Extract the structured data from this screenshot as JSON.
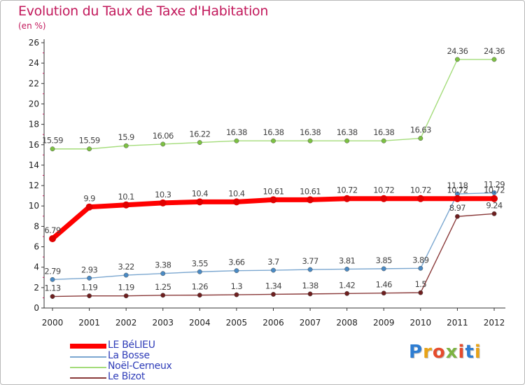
{
  "header": {
    "title": "Evolution du Taux de Taxe d'Habitation",
    "subtitle": "(en %)"
  },
  "logo": {
    "text": "Proxiti",
    "colors": [
      "#2e7dd2",
      "#e8a317",
      "#e54b2c",
      "#7cb342",
      "#e54b2c",
      "#2e7dd2",
      "#e8a317"
    ]
  },
  "chart_data": {
    "type": "line",
    "x": [
      "2000",
      "2001",
      "2002",
      "2003",
      "2004",
      "2005",
      "2006",
      "2007",
      "2008",
      "2009",
      "2010",
      "2011",
      "2012"
    ],
    "ylim": [
      0,
      26
    ],
    "yticks": [
      0,
      2,
      4,
      6,
      8,
      10,
      12,
      14,
      16,
      18,
      20,
      22,
      24,
      26
    ],
    "grid": false,
    "legend_position": "bottom-left",
    "series": [
      {
        "name": "LE BéLIEU",
        "color": "#ff0000",
        "point_color": "#e00000",
        "width": 7,
        "values": [
          6.79,
          9.9,
          10.1,
          10.3,
          10.4,
          10.4,
          10.61,
          10.61,
          10.72,
          10.72,
          10.72,
          10.72,
          10.72
        ],
        "labels": [
          "6.79",
          "9.9",
          "10.1",
          "10.3",
          "10.4",
          "10.4",
          "10.61",
          "10.61",
          "10.72",
          "10.72",
          "10.72",
          "10.72",
          "10.72"
        ]
      },
      {
        "name": "La Bosse",
        "color": "#7ba7d0",
        "point_color": "#4a8ac4",
        "width": 1.4,
        "values": [
          2.79,
          2.93,
          3.22,
          3.38,
          3.55,
          3.66,
          3.7,
          3.77,
          3.81,
          3.85,
          3.89,
          11.18,
          11.29
        ],
        "labels": [
          "2.79",
          "2.93",
          "3.22",
          "3.38",
          "3.55",
          "3.66",
          "3.7",
          "3.77",
          "3.81",
          "3.85",
          "3.89",
          "11.18",
          "11.29"
        ]
      },
      {
        "name": "Noël-Cerneux",
        "color": "#a4dc7a",
        "point_color": "#7cc142",
        "width": 1.4,
        "values": [
          15.59,
          15.59,
          15.9,
          16.06,
          16.22,
          16.38,
          16.38,
          16.38,
          16.38,
          16.38,
          16.63,
          24.36,
          24.36
        ],
        "labels": [
          "15.59",
          "15.59",
          "15.9",
          "16.06",
          "16.22",
          "16.38",
          "16.38",
          "16.38",
          "16.38",
          "16.38",
          "16.63",
          "24.36",
          "24.36"
        ]
      },
      {
        "name": "Le Bizot",
        "color": "#8a3a3a",
        "point_color": "#6e1f1f",
        "width": 1.4,
        "values": [
          1.13,
          1.19,
          1.19,
          1.25,
          1.26,
          1.3,
          1.34,
          1.38,
          1.42,
          1.46,
          1.5,
          8.97,
          9.24
        ],
        "labels": [
          "1.13",
          "1.19",
          "1.19",
          "1.25",
          "1.26",
          "1.3",
          "1.34",
          "1.38",
          "1.42",
          "1.46",
          "1.5",
          "8.97",
          "9.24"
        ]
      }
    ]
  }
}
